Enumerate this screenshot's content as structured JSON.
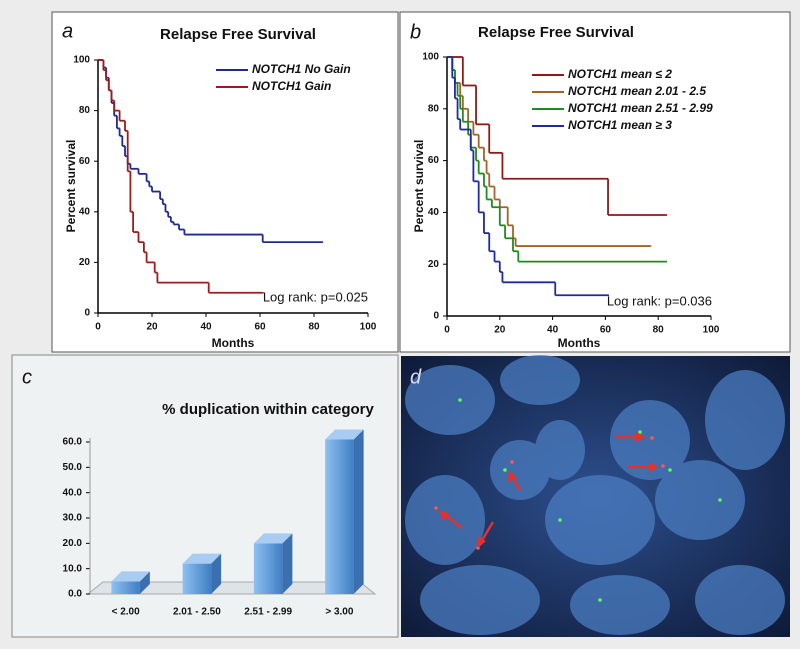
{
  "chart_data": [
    {
      "type": "line",
      "step": true,
      "panel_label": "a",
      "title": "Relapse Free Survival",
      "x_label": "Months",
      "y_label": "Percent survival",
      "annotation": "Log rank: p=0.025",
      "xlim": [
        0,
        100
      ],
      "ylim": [
        0,
        100
      ],
      "xticks": [
        0,
        20,
        40,
        60,
        80,
        100
      ],
      "yticks": [
        0,
        20,
        40,
        60,
        80,
        100
      ],
      "legend": "top-right",
      "series": [
        {
          "name": "NOTCH1 No Gain",
          "color": "#1f2a8c",
          "x": [
            0,
            2,
            3,
            4,
            5,
            6,
            7,
            8,
            9,
            10,
            11,
            12,
            15,
            18,
            19,
            20,
            23,
            24,
            25,
            26,
            27,
            28,
            30,
            32,
            61,
            83
          ],
          "values": [
            100,
            97,
            93,
            88,
            83,
            78,
            73,
            70,
            66,
            62,
            59,
            57,
            55,
            52,
            50,
            48,
            45,
            43,
            40,
            38,
            36,
            35,
            33,
            31,
            28,
            28
          ]
        },
        {
          "name": "NOTCH1 Gain",
          "color": "#9b1c1c",
          "x": [
            0,
            2,
            3,
            4,
            5,
            6,
            8,
            10,
            11,
            12,
            13,
            15,
            17,
            18,
            21,
            22,
            41,
            61
          ],
          "values": [
            100,
            96,
            92,
            88,
            84,
            80,
            76,
            72,
            56,
            40,
            32,
            28,
            24,
            20,
            16,
            12,
            8,
            8
          ]
        }
      ]
    },
    {
      "type": "line",
      "step": true,
      "panel_label": "b",
      "title": "Relapse Free Survival",
      "x_label": "Months",
      "y_label": "Percent survival",
      "annotation": "Log rank: p=0.036",
      "xlim": [
        0,
        100
      ],
      "ylim": [
        0,
        100
      ],
      "xticks": [
        0,
        20,
        40,
        60,
        80,
        100
      ],
      "yticks": [
        0,
        20,
        40,
        60,
        80,
        100
      ],
      "legend": "top-right",
      "series": [
        {
          "name": "NOTCH1 mean ≤ 2",
          "color": "#8b1a1a",
          "x": [
            0,
            6,
            11,
            16,
            21,
            61,
            83
          ],
          "values": [
            100,
            89,
            74,
            63,
            53,
            39,
            39
          ]
        },
        {
          "name": "NOTCH1 mean 2.01 - 2.5",
          "color": "#a0642a",
          "x": [
            0,
            2,
            3,
            5,
            6,
            8,
            10,
            12,
            14,
            15,
            16,
            18,
            20,
            23,
            25,
            26,
            77
          ],
          "values": [
            100,
            95,
            90,
            85,
            80,
            75,
            70,
            65,
            60,
            55,
            50,
            45,
            42,
            35,
            30,
            27,
            27
          ]
        },
        {
          "name": "NOTCH1 mean 2.51 - 2.99",
          "color": "#1f8a1f",
          "x": [
            0,
            2,
            3,
            4,
            5,
            6,
            8,
            9,
            11,
            12,
            14,
            15,
            17,
            20,
            22,
            25,
            27,
            83
          ],
          "values": [
            100,
            95,
            90,
            85,
            80,
            75,
            70,
            65,
            60,
            55,
            50,
            45,
            42,
            35,
            30,
            25,
            21,
            21
          ]
        },
        {
          "name": "NOTCH1 mean ≥ 3",
          "color": "#1f2a9c",
          "x": [
            0,
            2,
            3,
            4,
            5,
            9,
            10,
            12,
            14,
            16,
            18,
            20,
            21,
            41,
            61
          ],
          "values": [
            100,
            92,
            84,
            76,
            72,
            64,
            52,
            40,
            32,
            25,
            21,
            17,
            13,
            8,
            8
          ]
        }
      ]
    },
    {
      "type": "bar",
      "panel_label": "c",
      "title": "% duplication within category",
      "color": "#6aa6e0",
      "categories": [
        "< 2.00",
        "2.01 - 2.50",
        "2.51 - 2.99",
        "> 3.00"
      ],
      "values": [
        5,
        12,
        20,
        61
      ],
      "ylim": [
        0,
        60
      ],
      "yticks": [
        {
          "value": 0,
          "label": "0.0"
        },
        {
          "value": 10,
          "label": "10.0"
        },
        {
          "value": 20,
          "label": "20.0"
        },
        {
          "value": 30,
          "label": "30.0"
        },
        {
          "value": 40,
          "label": "40.0"
        },
        {
          "value": 50,
          "label": "50.0"
        },
        {
          "value": 60,
          "label": "60.0"
        }
      ]
    }
  ],
  "image_panel": {
    "panel_label": "d"
  }
}
